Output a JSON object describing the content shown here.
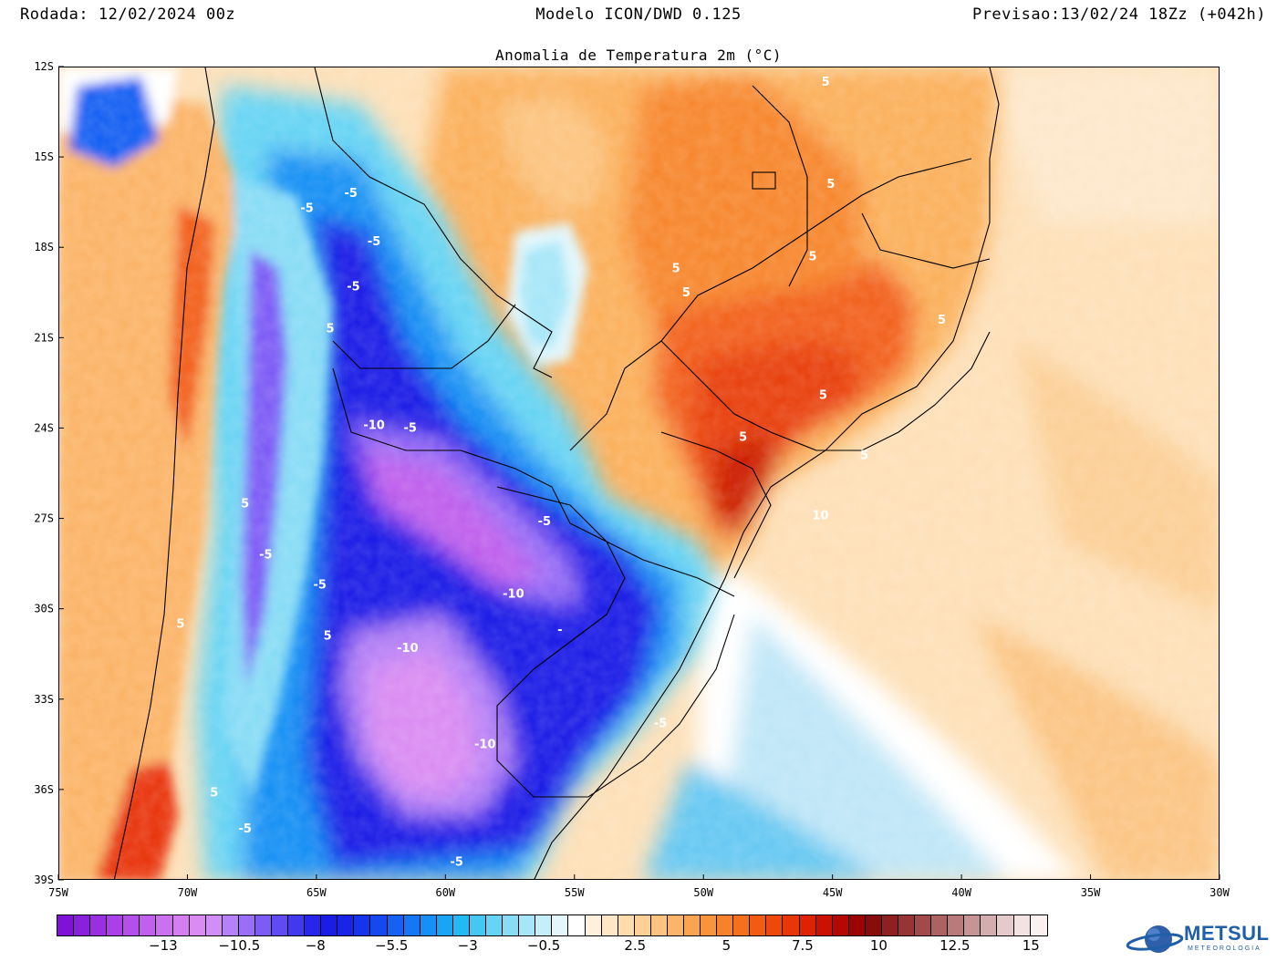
{
  "header": {
    "run": "Rodada: 12/02/2024 00z",
    "model": "Modelo ICON/DWD 0.125",
    "forecast": "Previsao:13/02/24 18Zz (+042h)"
  },
  "map": {
    "subtitle": "Anomalia de Temperatura 2m (°C)",
    "region": "South America - Southern Brazil, Uruguay, Paraguay, Argentina, Chile",
    "lon_range": [
      -75,
      -30
    ],
    "lat_range": [
      -39,
      -12
    ],
    "lon_ticks": [
      "75W",
      "70W",
      "65W",
      "60W",
      "55W",
      "50W",
      "45W",
      "40W",
      "35W",
      "30W"
    ],
    "lat_ticks": [
      "12S",
      "15S",
      "18S",
      "21S",
      "24S",
      "27S",
      "30S",
      "33S",
      "36S",
      "39S"
    ],
    "contour_labels": [
      {
        "text": "5",
        "lon": -45.3,
        "lat": -12.6
      },
      {
        "text": "5",
        "lon": -45.1,
        "lat": -16.0
      },
      {
        "text": "5",
        "lon": -51.1,
        "lat": -18.8
      },
      {
        "text": "5",
        "lon": -50.7,
        "lat": -19.6
      },
      {
        "text": "5",
        "lon": -45.8,
        "lat": -18.4
      },
      {
        "text": "5",
        "lon": -40.8,
        "lat": -20.5
      },
      {
        "text": "5",
        "lon": -45.4,
        "lat": -23.0
      },
      {
        "text": "5",
        "lon": -48.5,
        "lat": -24.4
      },
      {
        "text": "5",
        "lon": -43.8,
        "lat": -25.0
      },
      {
        "text": "10",
        "lon": -45.5,
        "lat": -27.0
      },
      {
        "text": "-5",
        "lon": -63.7,
        "lat": -16.3
      },
      {
        "text": "-5",
        "lon": -65.4,
        "lat": -16.8
      },
      {
        "text": "-5",
        "lon": -62.8,
        "lat": -17.9
      },
      {
        "text": "-5",
        "lon": -63.6,
        "lat": -19.4
      },
      {
        "text": "5",
        "lon": -64.5,
        "lat": -20.8
      },
      {
        "text": "-10",
        "lon": -62.8,
        "lat": -24.0
      },
      {
        "text": "-5",
        "lon": -61.4,
        "lat": -24.1
      },
      {
        "text": "5",
        "lon": -67.8,
        "lat": -26.6
      },
      {
        "text": "-5",
        "lon": -56.2,
        "lat": -27.2
      },
      {
        "text": "-5",
        "lon": -67.0,
        "lat": -28.3
      },
      {
        "text": "-5",
        "lon": -64.9,
        "lat": -29.3
      },
      {
        "text": "-10",
        "lon": -57.4,
        "lat": -29.6
      },
      {
        "text": "5",
        "lon": -70.3,
        "lat": -30.6
      },
      {
        "text": "5",
        "lon": -64.6,
        "lat": -31.0
      },
      {
        "text": "-10",
        "lon": -61.5,
        "lat": -31.4
      },
      {
        "text": "-",
        "lon": -55.6,
        "lat": -30.8
      },
      {
        "text": "-5",
        "lon": -51.7,
        "lat": -33.9
      },
      {
        "text": "-10",
        "lon": -58.5,
        "lat": -34.6
      },
      {
        "text": "5",
        "lon": -69.0,
        "lat": -36.2
      },
      {
        "text": "-5",
        "lon": -67.8,
        "lat": -37.4
      },
      {
        "text": "-5",
        "lon": -59.6,
        "lat": -38.5
      }
    ]
  },
  "colorbar": {
    "colors": [
      "#7f12d6",
      "#8a1fdc",
      "#9a2fe2",
      "#ab3fe8",
      "#b54fea",
      "#c060ec",
      "#cb70ee",
      "#d47ef0",
      "#da8cf2",
      "#d08ef6",
      "#b681f6",
      "#9a6ef6",
      "#7d5cf6",
      "#604af4",
      "#4238ee",
      "#2826ea",
      "#1b1de6",
      "#1824e6",
      "#1634ea",
      "#1548ee",
      "#1660f2",
      "#1478f4",
      "#1690f4",
      "#18a6f4",
      "#22baf2",
      "#44c8f2",
      "#66d4f4",
      "#88dcf6",
      "#a6e6f8",
      "#c4eefa",
      "#e2f6fc",
      "#ffffff",
      "#fff0dc",
      "#ffe6c4",
      "#fedcac",
      "#fdd096",
      "#fcc480",
      "#fbb468",
      "#f9a450",
      "#f8943c",
      "#f7822a",
      "#f5701c",
      "#f25c12",
      "#ee480c",
      "#e83608",
      "#de2204",
      "#cc1002",
      "#b40800",
      "#9c0400",
      "#880c0c",
      "#8f2020",
      "#983434",
      "#a24a4a",
      "#ad6262",
      "#b87a7a",
      "#c59494",
      "#d4aeae",
      "#e4caca",
      "#f2e2e2",
      "#fbf0f0"
    ],
    "labels": [
      {
        "text": "−13",
        "idx": 7
      },
      {
        "text": "−10.5",
        "idx": 12
      },
      {
        "text": "−8",
        "idx": 17
      },
      {
        "text": "−5.5",
        "idx": 22
      },
      {
        "text": "−3",
        "idx": 27
      },
      {
        "text": "−0.5",
        "idx": 32
      },
      {
        "text": "2.5",
        "idx": 38
      },
      {
        "text": "5",
        "idx": 44
      },
      {
        "text": "7.5",
        "idx": 49
      },
      {
        "text": "10",
        "idx": 54
      },
      {
        "text": "12.5",
        "idx": 59
      },
      {
        "text": "15",
        "idx": 64
      }
    ]
  },
  "logo": {
    "name": "METSUL",
    "sub": "METEOROLOGIA"
  }
}
